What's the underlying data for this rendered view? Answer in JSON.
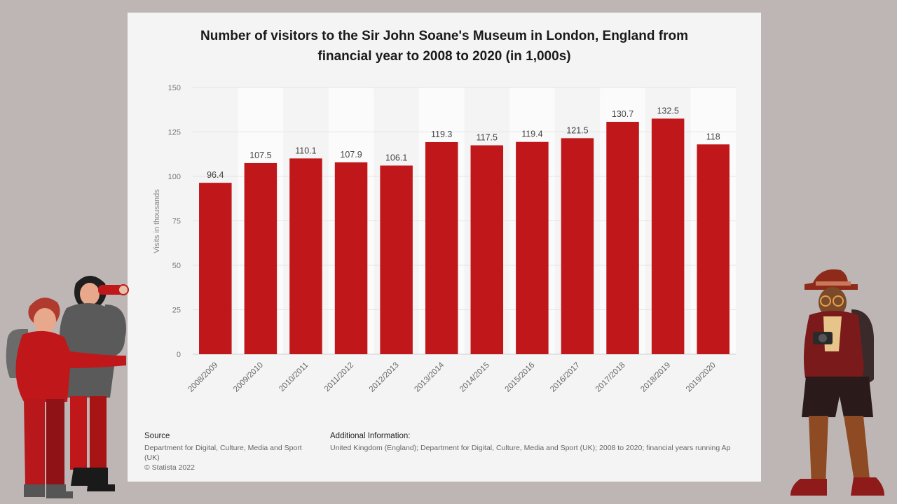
{
  "chart_data": {
    "type": "bar",
    "title_line1": "Number of visitors to the Sir John Soane's Museum in London, England from",
    "title_line2": "financial year to 2008 to 2020 (in 1,000s)",
    "xlabel": "",
    "ylabel": "Visits in thousands",
    "ylim": [
      0,
      150
    ],
    "yticks": [
      0,
      25,
      50,
      75,
      100,
      125,
      150
    ],
    "grid": true,
    "categories": [
      "2008/2009",
      "2009/2010",
      "2010/2011",
      "2011/2012",
      "2012/2013",
      "2013/2014",
      "2014/2015",
      "2015/2016",
      "2016/2017",
      "2017/2018",
      "2018/2019",
      "2019/2020"
    ],
    "values": [
      96.4,
      107.5,
      110.1,
      107.9,
      106.1,
      119.3,
      117.5,
      119.4,
      121.5,
      130.7,
      132.5,
      118
    ],
    "value_labels": [
      "96.4",
      "107.5",
      "110.1",
      "107.9",
      "106.1",
      "119.3",
      "117.5",
      "119.4",
      "121.5",
      "130.7",
      "132.5",
      "118"
    ],
    "bar_color": "#c0171a"
  },
  "footer": {
    "source_label": "Source",
    "source_line1": "Department for Digital, Culture, Media and Sport",
    "source_line2": "(UK)",
    "copyright": "© Statista 2022",
    "info_label": "Additional Information:",
    "info_text": "United Kingdom (England); Department for Digital, Culture, Media and Sport (UK); 2008 to 2020; financial years running Ap"
  },
  "illustrations": {
    "left": "two-hikers-with-binoculars-illustration",
    "right": "tourist-with-camera-illustration"
  }
}
